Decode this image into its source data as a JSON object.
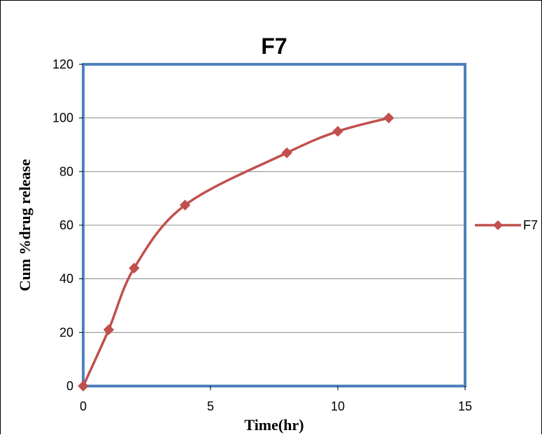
{
  "chart_data": {
    "type": "line",
    "title": "F7",
    "xlabel": "Time(hr)",
    "ylabel": "Cum %drug release",
    "xlim": [
      0,
      15
    ],
    "ylim": [
      0,
      120
    ],
    "xticks": [
      0,
      5,
      10,
      15
    ],
    "yticks": [
      0,
      20,
      40,
      60,
      80,
      100,
      120
    ],
    "grid": "horizontal",
    "legend_position": "right",
    "colors": {
      "series": "#c0504d",
      "plot_border": "#4f81bd",
      "gridline": "#8c8c8c"
    },
    "series": [
      {
        "name": "F7",
        "x": [
          0,
          1,
          2,
          4,
          8,
          10,
          12
        ],
        "y": [
          0,
          21,
          44,
          67.5,
          87,
          95,
          100
        ]
      }
    ]
  }
}
